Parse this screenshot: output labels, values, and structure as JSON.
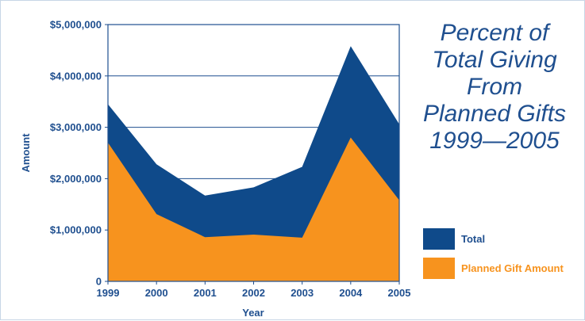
{
  "chart_data": {
    "type": "area",
    "title_lines": [
      "Percent of",
      "Total Giving",
      "From",
      "Planned Gifts",
      "1999—2005"
    ],
    "xlabel": "Year",
    "ylabel": "Amount",
    "x": [
      "1999",
      "2000",
      "2001",
      "2002",
      "2003",
      "2004",
      "2005"
    ],
    "ylim": [
      0,
      5000000
    ],
    "y_ticks": [
      0,
      1000000,
      2000000,
      3000000,
      4000000,
      5000000
    ],
    "y_tick_labels": [
      "0",
      "$1,000,000",
      "$2,000,000",
      "$3,000,000",
      "$4,000,000",
      "$5,000,000"
    ],
    "grid": "horizontal",
    "legend_position": "bottom-right",
    "series": [
      {
        "name": "Total",
        "color": "#0f4a8a",
        "values": [
          3450000,
          2280000,
          1670000,
          1830000,
          2230000,
          4580000,
          3060000
        ]
      },
      {
        "name": "Planned Gift Amount",
        "color": "#f7931e",
        "values": [
          2700000,
          1310000,
          860000,
          910000,
          850000,
          2800000,
          1580000
        ]
      }
    ]
  }
}
